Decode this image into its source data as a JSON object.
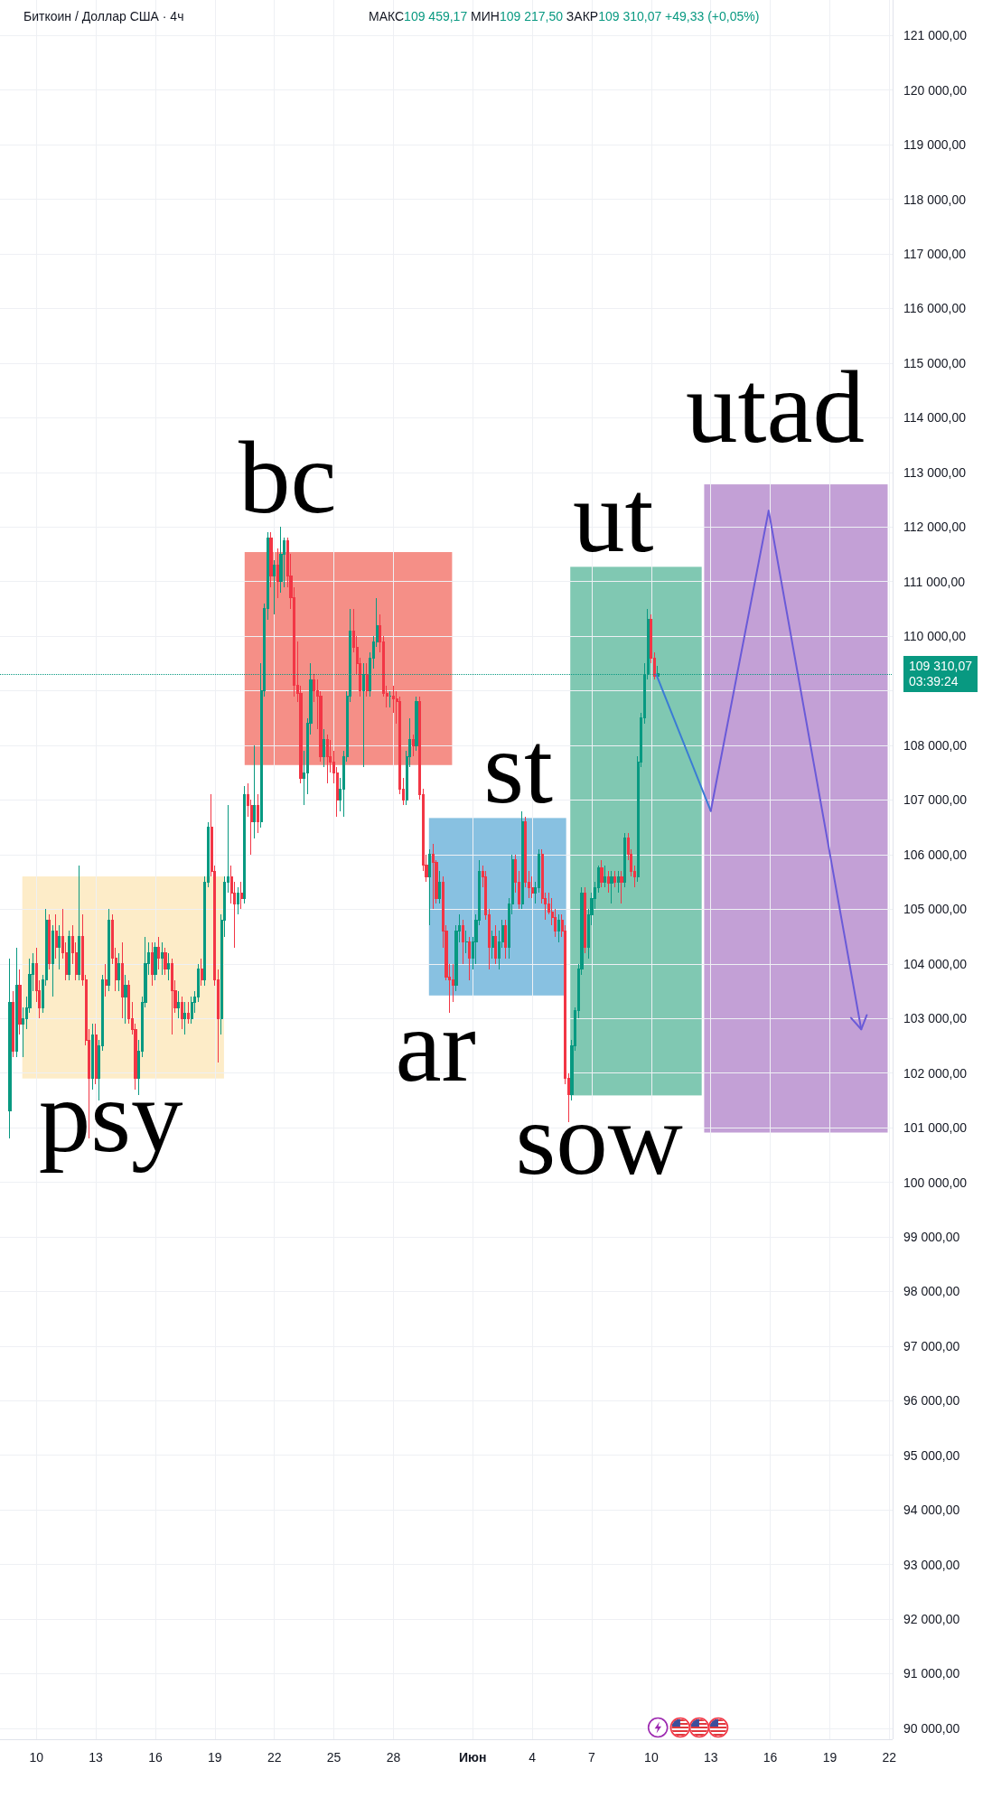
{
  "chart_data": {
    "type": "candlestick",
    "title": "Биткоин / Доллар США · 4ч",
    "subtitle": "МАКС109 459,17 МИН109 217,50 ЗАКР109 310,07 +49,33 (+0,05%)",
    "annotations": [
      "psy",
      "bc",
      "ar",
      "st",
      "sow",
      "ut",
      "utad"
    ],
    "x": [
      "--05-08T16:00",
      "--05-08T20:00",
      "--05-09T00:00",
      "--05-09T04:00",
      "--05-09T08:00",
      "--05-09T12:00",
      "--05-09T16:00",
      "--05-09T20:00",
      "--05-10T00:00",
      "--05-10T04:00",
      "--05-10T08:00",
      "--05-10T12:00",
      "--05-10T16:00",
      "--05-10T20:00",
      "--05-11T00:00",
      "--05-11T04:00",
      "--05-11T08:00",
      "--05-11T12:00",
      "--05-11T16:00",
      "--05-11T20:00",
      "--05-12T00:00",
      "--05-12T04:00",
      "--05-12T08:00",
      "--05-12T12:00",
      "--05-12T16:00",
      "--05-12T20:00",
      "--05-13T00:00",
      "--05-13T04:00",
      "--05-13T08:00",
      "--05-13T12:00",
      "--05-13T16:00",
      "--05-13T20:00",
      "--05-14T00:00",
      "--05-14T04:00",
      "--05-14T08:00",
      "--05-14T12:00",
      "--05-14T16:00",
      "--05-14T20:00",
      "--05-15T00:00",
      "--05-15T04:00",
      "--05-15T08:00",
      "--05-15T12:00",
      "--05-15T16:00",
      "--05-15T20:00",
      "--05-16T00:00",
      "--05-16T04:00",
      "--05-16T08:00",
      "--05-16T12:00",
      "--05-16T16:00",
      "--05-16T20:00",
      "--05-17T00:00",
      "--05-17T04:00",
      "--05-17T08:00",
      "--05-17T12:00",
      "--05-17T16:00",
      "--05-17T20:00",
      "--05-18T00:00",
      "--05-18T04:00",
      "--05-18T08:00",
      "--05-18T12:00",
      "--05-18T16:00",
      "--05-18T20:00",
      "--05-19T00:00",
      "--05-19T04:00",
      "--05-19T08:00",
      "--05-19T12:00",
      "--05-19T16:00",
      "--05-19T20:00",
      "--05-20T00:00",
      "--05-20T04:00",
      "--05-20T08:00",
      "--05-20T12:00",
      "--05-20T16:00",
      "--05-20T20:00",
      "--05-21T00:00",
      "--05-21T04:00",
      "--05-21T08:00",
      "--05-21T12:00",
      "--05-21T16:00",
      "--05-21T20:00",
      "--05-22T00:00",
      "--05-22T04:00",
      "--05-22T08:00",
      "--05-22T12:00",
      "--05-22T16:00",
      "--05-22T20:00",
      "--05-23T00:00",
      "--05-23T04:00",
      "--05-23T08:00",
      "--05-23T12:00",
      "--05-23T16:00",
      "--05-23T20:00",
      "--05-24T00:00",
      "--05-24T04:00",
      "--05-24T08:00",
      "--05-24T12:00",
      "--05-24T16:00",
      "--05-24T20:00",
      "--05-25T00:00",
      "--05-25T04:00",
      "--05-25T08:00",
      "--05-25T12:00",
      "--05-25T16:00",
      "--05-25T20:00",
      "--05-26T00:00",
      "--05-26T04:00",
      "--05-26T08:00",
      "--05-26T12:00",
      "--05-26T16:00",
      "--05-26T20:00",
      "--05-27T00:00",
      "--05-27T04:00",
      "--05-27T08:00",
      "--05-27T12:00",
      "--05-27T16:00",
      "--05-27T20:00",
      "--05-28T00:00",
      "--05-28T04:00",
      "--05-28T08:00",
      "--05-28T12:00",
      "--05-28T16:00",
      "--05-28T20:00",
      "--05-29T00:00",
      "--05-29T04:00",
      "--05-29T08:00",
      "--05-29T12:00",
      "--05-29T16:00",
      "--05-29T20:00",
      "--05-30T00:00",
      "--05-30T04:00",
      "--05-30T08:00",
      "--05-30T12:00",
      "--05-30T16:00",
      "--05-30T20:00",
      "--05-31T00:00",
      "--05-31T04:00",
      "--05-31T08:00",
      "--05-31T12:00",
      "--05-31T16:00",
      "--05-31T20:00",
      "--06-01T00:00",
      "--06-01T04:00",
      "--06-01T08:00",
      "--06-01T12:00",
      "--06-01T16:00",
      "--06-01T20:00",
      "--06-02T00:00",
      "--06-02T04:00",
      "--06-02T08:00",
      "--06-02T12:00",
      "--06-02T16:00",
      "--06-02T20:00",
      "--06-03T00:00",
      "--06-03T04:00",
      "--06-03T08:00",
      "--06-03T12:00",
      "--06-03T16:00",
      "--06-03T20:00",
      "--06-04T00:00",
      "--06-04T04:00",
      "--06-04T08:00",
      "--06-04T12:00",
      "--06-04T16:00",
      "--06-04T20:00",
      "--06-05T00:00",
      "--06-05T04:00",
      "--06-05T08:00",
      "--06-05T12:00",
      "--06-05T16:00",
      "--06-05T20:00",
      "--06-06T00:00",
      "--06-06T04:00",
      "--06-06T08:00",
      "--06-06T12:00",
      "--06-06T16:00",
      "--06-06T20:00",
      "--06-07T00:00",
      "--06-07T04:00",
      "--06-07T08:00",
      "--06-07T12:00",
      "--06-07T16:00",
      "--06-07T20:00",
      "--06-08T00:00",
      "--06-08T04:00",
      "--06-08T08:00",
      "--06-08T12:00",
      "--06-08T16:00",
      "--06-08T20:00",
      "--06-09T00:00",
      "--06-09T04:00",
      "--06-09T08:00",
      "--06-09T12:00",
      "--06-09T16:00",
      "--06-09T20:00",
      "--06-10T00:00",
      "--06-10T04:00",
      "--06-10T08:00"
    ],
    "ohlc": [
      [
        101300,
        104100,
        100800,
        103300
      ],
      [
        103300,
        103500,
        102300,
        102400
      ],
      [
        102400,
        104300,
        102300,
        103600
      ],
      [
        103600,
        103900,
        102700,
        102900
      ],
      [
        102900,
        103200,
        102300,
        103000
      ],
      [
        103000,
        103400,
        102800,
        103200
      ],
      [
        103200,
        104100,
        103100,
        103800
      ],
      [
        103800,
        104200,
        103500,
        104000
      ],
      [
        104000,
        104300,
        103300,
        103500
      ],
      [
        103500,
        103700,
        103000,
        103200
      ],
      [
        103200,
        103800,
        103100,
        103700
      ],
      [
        103700,
        105000,
        103600,
        104800
      ],
      [
        104800,
        104900,
        103900,
        104000
      ],
      [
        104000,
        104700,
        103400,
        104600
      ],
      [
        104600,
        104900,
        104100,
        104300
      ],
      [
        104300,
        104700,
        103900,
        104500
      ],
      [
        104500,
        105000,
        104100,
        104200
      ],
      [
        104200,
        104400,
        103700,
        103800
      ],
      [
        103800,
        104600,
        103700,
        104500
      ],
      [
        104500,
        104700,
        104000,
        104200
      ],
      [
        104200,
        104400,
        103700,
        103800
      ],
      [
        103800,
        105800,
        103700,
        104500
      ],
      [
        104500,
        104900,
        103600,
        103700
      ],
      [
        103700,
        103800,
        102500,
        102600
      ],
      [
        102600,
        102800,
        100800,
        101900
      ],
      [
        101900,
        102900,
        101700,
        102700
      ],
      [
        102700,
        102900,
        101800,
        101900
      ],
      [
        101900,
        102600,
        101500,
        102500
      ],
      [
        102500,
        103800,
        102400,
        103700
      ],
      [
        103700,
        104000,
        103400,
        103600
      ],
      [
        103600,
        105000,
        103500,
        104800
      ],
      [
        104800,
        104900,
        104000,
        104100
      ],
      [
        104100,
        104300,
        103500,
        103700
      ],
      [
        103700,
        104200,
        103500,
        104000
      ],
      [
        104000,
        104400,
        103000,
        103400
      ],
      [
        103400,
        103800,
        102900,
        103600
      ],
      [
        103600,
        103700,
        102900,
        103000
      ],
      [
        103000,
        103300,
        102700,
        102800
      ],
      [
        102800,
        102900,
        101700,
        101900
      ],
      [
        101900,
        102600,
        101600,
        102400
      ],
      [
        102400,
        103400,
        102300,
        103300
      ],
      [
        103300,
        104500,
        103200,
        104000
      ],
      [
        104000,
        104400,
        103800,
        104200
      ],
      [
        104200,
        104400,
        103600,
        103800
      ],
      [
        103800,
        104400,
        103700,
        104300
      ],
      [
        104300,
        104500,
        103900,
        104100
      ],
      [
        104100,
        104400,
        103800,
        104200
      ],
      [
        104200,
        104300,
        103800,
        103900
      ],
      [
        103900,
        104200,
        103700,
        104000
      ],
      [
        104000,
        104100,
        102700,
        103500
      ],
      [
        103500,
        103700,
        103100,
        103200
      ],
      [
        103200,
        103500,
        103000,
        103300
      ],
      [
        103300,
        103400,
        102800,
        103000
      ],
      [
        103000,
        103300,
        102700,
        103100
      ],
      [
        103100,
        103300,
        102900,
        103000
      ],
      [
        103000,
        103400,
        102900,
        103300
      ],
      [
        103300,
        103500,
        103100,
        103400
      ],
      [
        103400,
        104000,
        103300,
        103900
      ],
      [
        103900,
        104100,
        103600,
        103700
      ],
      [
        103700,
        105600,
        103600,
        105500
      ],
      [
        105500,
        106600,
        105400,
        106500
      ],
      [
        106500,
        107100,
        105600,
        105700
      ],
      [
        105700,
        105800,
        103600,
        103700
      ],
      [
        103700,
        103900,
        102200,
        103000
      ],
      [
        103000,
        104900,
        102700,
        104800
      ],
      [
        104800,
        105600,
        104500,
        105500
      ],
      [
        105500,
        106900,
        105300,
        105600
      ],
      [
        105600,
        105800,
        105100,
        105300
      ],
      [
        105300,
        105500,
        104300,
        105100
      ],
      [
        105100,
        105400,
        104900,
        105300
      ],
      [
        105300,
        105500,
        105000,
        105200
      ],
      [
        105200,
        107250,
        105100,
        107100
      ],
      [
        107100,
        107300,
        106700,
        106900
      ],
      [
        106900,
        107000,
        106000,
        106600
      ],
      [
        106600,
        108000,
        106300,
        106900
      ],
      [
        106900,
        107100,
        106400,
        106600
      ],
      [
        106600,
        109500,
        106500,
        109000
      ],
      [
        109000,
        110600,
        108900,
        110500
      ],
      [
        110500,
        111900,
        110300,
        111800
      ],
      [
        111800,
        111900,
        110900,
        111100
      ],
      [
        111100,
        111400,
        110400,
        111300
      ],
      [
        111300,
        111600,
        110700,
        111000
      ],
      [
        111000,
        112000,
        110800,
        111500
      ],
      [
        111500,
        111800,
        110900,
        111750
      ],
      [
        111750,
        111800,
        110900,
        111100
      ],
      [
        111100,
        111500,
        110500,
        110700
      ],
      [
        110700,
        110900,
        108900,
        109100
      ],
      [
        109100,
        109900,
        108800,
        108950
      ],
      [
        108950,
        109100,
        107300,
        107400
      ],
      [
        107400,
        107900,
        106900,
        107500
      ],
      [
        107500,
        108500,
        107100,
        108400
      ],
      [
        108400,
        109500,
        108200,
        109200
      ],
      [
        109200,
        109300,
        108800,
        109000
      ],
      [
        109000,
        109200,
        108300,
        108900
      ],
      [
        108900,
        109000,
        107700,
        107800
      ],
      [
        107800,
        108300,
        107600,
        108100
      ],
      [
        108100,
        108200,
        107300,
        107800
      ],
      [
        107800,
        108100,
        107500,
        107700
      ],
      [
        107700,
        107900,
        107300,
        107500
      ],
      [
        107500,
        107600,
        106700,
        107000
      ],
      [
        107000,
        107400,
        106800,
        107200
      ],
      [
        107200,
        107900,
        106700,
        107800
      ],
      [
        107800,
        109000,
        107700,
        108900
      ],
      [
        108900,
        110500,
        108800,
        110100
      ],
      [
        110100,
        110500,
        109700,
        109800
      ],
      [
        109800,
        110000,
        109300,
        109500
      ],
      [
        109500,
        109600,
        108900,
        109000
      ],
      [
        109000,
        109500,
        107600,
        109300
      ],
      [
        109300,
        109500,
        108900,
        109000
      ],
      [
        109000,
        109700,
        108900,
        109600
      ],
      [
        109600,
        110000,
        109400,
        109900
      ],
      [
        109900,
        110700,
        109800,
        110200
      ],
      [
        110200,
        110400,
        109700,
        109900
      ],
      [
        109900,
        110000,
        108900,
        108950
      ],
      [
        108950,
        109100,
        108700,
        108900
      ],
      [
        108900,
        109000,
        108700,
        108900
      ],
      [
        108900,
        109100,
        108600,
        108850
      ],
      [
        108850,
        109000,
        108400,
        108800
      ],
      [
        108800,
        108900,
        107100,
        107200
      ],
      [
        107200,
        107400,
        106900,
        107000
      ],
      [
        107000,
        107900,
        106900,
        107800
      ],
      [
        107800,
        108500,
        107600,
        108100
      ],
      [
        108100,
        108200,
        107800,
        108000
      ],
      [
        108000,
        108900,
        107900,
        108800
      ],
      [
        108800,
        108900,
        107000,
        107100
      ],
      [
        107100,
        107200,
        105700,
        105800
      ],
      [
        105800,
        106000,
        105500,
        105600
      ],
      [
        105600,
        106100,
        104700,
        106000
      ],
      [
        106000,
        106200,
        105000,
        105850
      ],
      [
        105850,
        105900,
        105100,
        105200
      ],
      [
        105200,
        105700,
        105100,
        105500
      ],
      [
        105500,
        105600,
        104300,
        104600
      ],
      [
        104600,
        104700,
        103700,
        103750
      ],
      [
        103750,
        104000,
        103100,
        103700
      ],
      [
        103700,
        104000,
        103300,
        103600
      ],
      [
        103600,
        104700,
        103500,
        104600
      ],
      [
        104600,
        104900,
        104400,
        104700
      ],
      [
        104700,
        104800,
        104000,
        104400
      ],
      [
        104400,
        104600,
        104200,
        104400
      ],
      [
        104400,
        104500,
        103700,
        104100
      ],
      [
        104100,
        104500,
        103900,
        104400
      ],
      [
        104400,
        104900,
        104000,
        104800
      ],
      [
        104800,
        105900,
        104700,
        105700
      ],
      [
        105700,
        105800,
        105400,
        105600
      ],
      [
        105600,
        105700,
        104800,
        104900
      ],
      [
        104900,
        105000,
        103900,
        104300
      ],
      [
        104300,
        104600,
        104100,
        104500
      ],
      [
        104500,
        104700,
        104000,
        104100
      ],
      [
        104100,
        104600,
        103900,
        104400
      ],
      [
        104400,
        104800,
        104300,
        104700
      ],
      [
        104700,
        104800,
        104100,
        104300
      ],
      [
        104300,
        105200,
        104100,
        105100
      ],
      [
        105100,
        106000,
        104900,
        105900
      ],
      [
        105900,
        106000,
        105300,
        105500
      ],
      [
        105500,
        105700,
        105000,
        105100
      ],
      [
        105100,
        106800,
        105000,
        106600
      ],
      [
        106600,
        106700,
        105400,
        105500
      ],
      [
        105500,
        105700,
        105200,
        105400
      ],
      [
        105400,
        105600,
        105200,
        105300
      ],
      [
        105300,
        105500,
        105100,
        105400
      ],
      [
        105400,
        106100,
        105300,
        106000
      ],
      [
        106000,
        106100,
        105100,
        105200
      ],
      [
        105200,
        105300,
        104800,
        105100
      ],
      [
        105100,
        105300,
        104900,
        104950
      ],
      [
        104950,
        105200,
        104700,
        104850
      ],
      [
        104850,
        105000,
        104500,
        104600
      ],
      [
        104600,
        104900,
        104400,
        104800
      ],
      [
        104800,
        104900,
        104500,
        104600
      ],
      [
        104600,
        104700,
        101800,
        101900
      ],
      [
        101900,
        102000,
        101100,
        101600
      ],
      [
        101600,
        102600,
        101500,
        102500
      ],
      [
        102500,
        103200,
        102400,
        103150
      ],
      [
        103150,
        104000,
        103000,
        103900
      ],
      [
        103900,
        105400,
        103800,
        105300
      ],
      [
        105300,
        105400,
        104200,
        104300
      ],
      [
        104300,
        105000,
        104100,
        104900
      ],
      [
        104900,
        105300,
        104700,
        105200
      ],
      [
        105200,
        105500,
        105000,
        105400
      ],
      [
        105400,
        105800,
        105300,
        105750
      ],
      [
        105750,
        105900,
        105400,
        105500
      ],
      [
        105500,
        105800,
        105400,
        105600
      ],
      [
        105600,
        105700,
        105300,
        105470
      ],
      [
        105470,
        105700,
        105100,
        105600
      ],
      [
        105600,
        105700,
        105400,
        105500
      ],
      [
        105500,
        105700,
        105300,
        105600
      ],
      [
        105600,
        105700,
        105100,
        105500
      ],
      [
        105500,
        106400,
        105400,
        106300
      ],
      [
        106300,
        106400,
        105900,
        106000
      ],
      [
        106000,
        106100,
        105600,
        105700
      ],
      [
        105700,
        105800,
        105400,
        105600
      ],
      [
        105600,
        107800,
        105500,
        107700
      ],
      [
        107700,
        108600,
        107600,
        108500
      ],
      [
        108500,
        109500,
        108400,
        109300
      ],
      [
        109300,
        110500,
        109200,
        110300
      ],
      [
        110300,
        110400,
        109500,
        109600
      ],
      [
        109600,
        109700,
        109200,
        109260
      ],
      [
        109260,
        109459.17,
        109217.5,
        109310.07
      ]
    ],
    "xlim": [
      "--05-08T04:00",
      "--06-22T04:00"
    ],
    "ylim": [
      89800,
      121650
    ],
    "xticks": [
      {
        "value": "--05-10",
        "label": "10"
      },
      {
        "value": "--05-13",
        "label": "13"
      },
      {
        "value": "--05-16",
        "label": "16"
      },
      {
        "value": "--05-19",
        "label": "19"
      },
      {
        "value": "--05-22",
        "label": "22"
      },
      {
        "value": "--05-25",
        "label": "25"
      },
      {
        "value": "--05-28",
        "label": "28"
      },
      {
        "value": "--06-01",
        "label": "Июн"
      },
      {
        "value": "--06-04",
        "label": "4"
      },
      {
        "value": "--06-07",
        "label": "7"
      },
      {
        "value": "--06-10",
        "label": "10"
      },
      {
        "value": "--06-13",
        "label": "13"
      },
      {
        "value": "--06-16",
        "label": "16"
      },
      {
        "value": "--06-19",
        "label": "19"
      },
      {
        "value": "--06-22",
        "label": "22"
      }
    ],
    "yticks": [
      {
        "value": 90000,
        "label": "90 000,00"
      },
      {
        "value": 91000,
        "label": "91 000,00"
      },
      {
        "value": 92000,
        "label": "92 000,00"
      },
      {
        "value": 93000,
        "label": "93 000,00"
      },
      {
        "value": 94000,
        "label": "94 000,00"
      },
      {
        "value": 95000,
        "label": "95 000,00"
      },
      {
        "value": 96000,
        "label": "96 000,00"
      },
      {
        "value": 97000,
        "label": "97 000,00"
      },
      {
        "value": 98000,
        "label": "98 000,00"
      },
      {
        "value": 99000,
        "label": "99 000,00"
      },
      {
        "value": 100000,
        "label": "100 000,00"
      },
      {
        "value": 101000,
        "label": "101 000,00"
      },
      {
        "value": 102000,
        "label": "102 000,00"
      },
      {
        "value": 103000,
        "label": "103 000,00"
      },
      {
        "value": 104000,
        "label": "104 000,00"
      },
      {
        "value": 105000,
        "label": "105 000,00"
      },
      {
        "value": 106000,
        "label": "106 000,00"
      },
      {
        "value": 107000,
        "label": "107 000,00"
      },
      {
        "value": 108000,
        "label": "108 000,00"
      },
      {
        "value": 109000,
        "label": null
      },
      {
        "value": 110000,
        "label": "110 000,00"
      },
      {
        "value": 111000,
        "label": "111 000,00"
      },
      {
        "value": 112000,
        "label": "112 000,00"
      },
      {
        "value": 113000,
        "label": "113 000,00"
      },
      {
        "value": 114000,
        "label": "114 000,00"
      },
      {
        "value": 115000,
        "label": "115 000,00"
      },
      {
        "value": 116000,
        "label": "116 000,00"
      },
      {
        "value": 117000,
        "label": "117 000,00"
      },
      {
        "value": 118000,
        "label": "118 000,00"
      },
      {
        "value": 119000,
        "label": "119 000,00"
      },
      {
        "value": 120000,
        "label": "120 000,00"
      },
      {
        "value": 121000,
        "label": "121 000,00"
      }
    ],
    "grid": true,
    "ref_lines": [
      {
        "axis": "y",
        "value": 109310.07,
        "label": "109 310,07\n03:39:24",
        "color": "#089981",
        "line_style": "dotted"
      }
    ]
  }
}
